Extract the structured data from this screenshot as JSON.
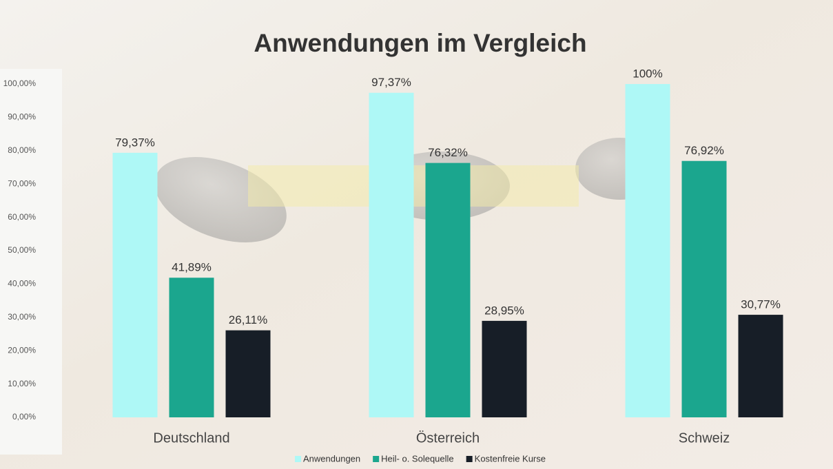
{
  "chart_data": {
    "type": "bar",
    "title": "Anwendungen im Vergleich",
    "categories": [
      "Deutschland",
      "Österreich",
      "Schweiz"
    ],
    "series": [
      {
        "name": "Anwendungen",
        "color": "#aef8f6",
        "values": [
          79.37,
          97.37,
          100
        ],
        "value_labels": [
          "79,37%",
          "97,37%",
          "100%"
        ]
      },
      {
        "name": "Heil- o. Solequelle",
        "color": "#1ba68e",
        "values": [
          41.89,
          76.32,
          76.92
        ],
        "value_labels": [
          "41,89%",
          "76,32%",
          "76,92%"
        ]
      },
      {
        "name": "Kostenfreie Kurse",
        "color": "#171e27",
        "values": [
          26.11,
          28.95,
          30.77
        ],
        "value_labels": [
          "26,11%",
          "28,95%",
          "30,77%"
        ]
      }
    ],
    "ylim": [
      0,
      100
    ],
    "yticks": [
      {
        "value": 0,
        "label": "0,00%"
      },
      {
        "value": 10,
        "label": "10,00%"
      },
      {
        "value": 20,
        "label": "20,00%"
      },
      {
        "value": 30,
        "label": "30,00%"
      },
      {
        "value": 40,
        "label": "40,00%"
      },
      {
        "value": 50,
        "label": "50,00%"
      },
      {
        "value": 60,
        "label": "60,00%"
      },
      {
        "value": 70,
        "label": "70,00%"
      },
      {
        "value": 80,
        "label": "80,00%"
      },
      {
        "value": 90,
        "label": "90,00%"
      },
      {
        "value": 100,
        "label": "100,00%"
      }
    ],
    "grid": false,
    "legend": "bottom"
  }
}
